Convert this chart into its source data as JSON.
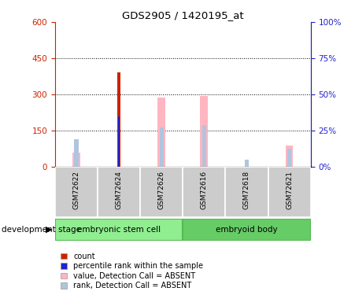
{
  "title": "GDS2905 / 1420195_at",
  "samples": [
    "GSM72622",
    "GSM72624",
    "GSM72626",
    "GSM72616",
    "GSM72618",
    "GSM72621"
  ],
  "left_ylim": [
    0,
    600
  ],
  "left_yticks": [
    0,
    150,
    300,
    450,
    600
  ],
  "right_ylim": [
    0,
    100
  ],
  "right_yticks": [
    0,
    25,
    50,
    75,
    100
  ],
  "right_yticklabels": [
    "0%",
    "25%",
    "50%",
    "75%",
    "100%"
  ],
  "count_values": [
    0,
    390,
    0,
    0,
    0,
    0
  ],
  "percentile_rank_values": [
    0,
    210,
    0,
    0,
    0,
    0
  ],
  "absent_value_values": [
    60,
    0,
    288,
    293,
    0,
    88
  ],
  "absent_rank_values": [
    115,
    0,
    163,
    173,
    28,
    75
  ],
  "absent_value_color": "#ffb6c1",
  "absent_rank_color": "#b0c4de",
  "count_color": "#cc2200",
  "percentile_rank_color": "#2222cc",
  "bar_width": 0.18,
  "left_axis_color": "#cc2200",
  "right_axis_color": "#2222cc",
  "grid_dotted_at": [
    150,
    300,
    450
  ],
  "esc_color": "#90ee90",
  "eb_color": "#66cc66",
  "gray_cell_color": "#cccccc",
  "legend_items": [
    {
      "label": "count",
      "color": "#cc2200"
    },
    {
      "label": "percentile rank within the sample",
      "color": "#2222cc"
    },
    {
      "label": "value, Detection Call = ABSENT",
      "color": "#ffb6c1"
    },
    {
      "label": "rank, Detection Call = ABSENT",
      "color": "#b0c4de"
    }
  ],
  "dev_stage_label": "development stage"
}
